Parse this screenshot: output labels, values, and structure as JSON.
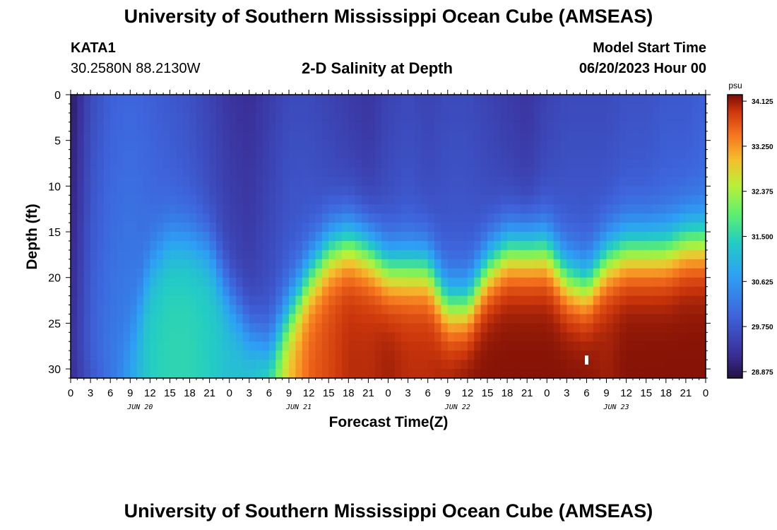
{
  "header": {
    "title": "University of Southern Mississippi Ocean Cube (AMSEAS)",
    "station_id": "KATA1",
    "coordinates": "30.2580N  88.2130W",
    "plot_subtitle": "2-D Salinity at Depth",
    "model_start_label": "Model Start Time",
    "model_start_value": "06/20/2023 Hour 00"
  },
  "footer": {
    "title": "University of Southern Mississippi Ocean Cube (AMSEAS)"
  },
  "chart_data": {
    "type": "heatmap",
    "title": "2-D Salinity at Depth",
    "xlabel": "Forecast Time(Z)",
    "ylabel": "Depth (ft)",
    "x_range_hours": [
      0,
      96
    ],
    "y_range_ft": [
      0,
      31
    ],
    "y_ticks": [
      "0",
      "5",
      "10",
      "15",
      "20",
      "25",
      "30"
    ],
    "x_ticks": [
      "0",
      "3",
      "6",
      "9",
      "12",
      "15",
      "18",
      "21",
      "0",
      "3",
      "6",
      "9",
      "12",
      "15",
      "18",
      "21",
      "0",
      "3",
      "6",
      "9",
      "12",
      "15",
      "18",
      "21",
      "0",
      "3",
      "6",
      "9",
      "12",
      "15",
      "18",
      "21",
      "0"
    ],
    "date_labels": [
      "JUN 20",
      "JUN 21",
      "JUN 22",
      "JUN 23"
    ],
    "colorbar": {
      "unit": "psu",
      "ticks": [
        "34.125",
        "33.250",
        "32.375",
        "31.500",
        "30.625",
        "29.750",
        "28.875"
      ],
      "range": [
        28.75,
        34.25
      ]
    },
    "halocline_depth_ft": {
      "hours": [
        0,
        3,
        6,
        9,
        12,
        15,
        18,
        21,
        24,
        27,
        30,
        33,
        36,
        39,
        42,
        45,
        48,
        51,
        54,
        57,
        60,
        63,
        66,
        69,
        72,
        75,
        78,
        81,
        84,
        87,
        90,
        93,
        96
      ],
      "depth": [
        31,
        31,
        31,
        27,
        19,
        16,
        16,
        17,
        22,
        26,
        28,
        24,
        20,
        17,
        16,
        17,
        19,
        19,
        19,
        23,
        23,
        19,
        17,
        17,
        17,
        20,
        21,
        18,
        17,
        17,
        17,
        16,
        16
      ]
    },
    "bottom_salinity_psu": {
      "hours": [
        0,
        3,
        6,
        9,
        12,
        15,
        18,
        21,
        24,
        27,
        30,
        33,
        36,
        39,
        42,
        45,
        48,
        51,
        54,
        57,
        60,
        63,
        66,
        69,
        72,
        75,
        78,
        81,
        84,
        87,
        90,
        93,
        96
      ],
      "values": [
        29.1,
        29.5,
        30.1,
        30.8,
        31.4,
        31.5,
        31.5,
        31.4,
        31.2,
        31.3,
        31.8,
        33.0,
        33.6,
        33.8,
        34.0,
        34.0,
        34.1,
        34.0,
        34.0,
        34.1,
        34.2,
        34.2,
        34.2,
        34.2,
        34.2,
        34.2,
        34.2,
        34.1,
        34.2,
        34.2,
        34.2,
        34.2,
        34.2
      ]
    },
    "surface_salinity_psu": {
      "hours": [
        0,
        3,
        6,
        9,
        12,
        15,
        18,
        21,
        24,
        27,
        30,
        33,
        36,
        39,
        42,
        45,
        48,
        51,
        54,
        57,
        60,
        63,
        66,
        69,
        72,
        75,
        78,
        81,
        84,
        87,
        90,
        93,
        96
      ],
      "values": [
        28.9,
        29.6,
        29.9,
        30.0,
        29.9,
        29.8,
        29.7,
        29.5,
        29.3,
        29.2,
        29.4,
        29.6,
        29.6,
        29.5,
        29.4,
        29.3,
        29.5,
        29.6,
        29.5,
        29.6,
        29.6,
        29.5,
        29.4,
        29.3,
        29.5,
        29.6,
        29.6,
        29.6,
        29.7,
        29.7,
        29.8,
        29.8,
        29.9
      ]
    }
  }
}
